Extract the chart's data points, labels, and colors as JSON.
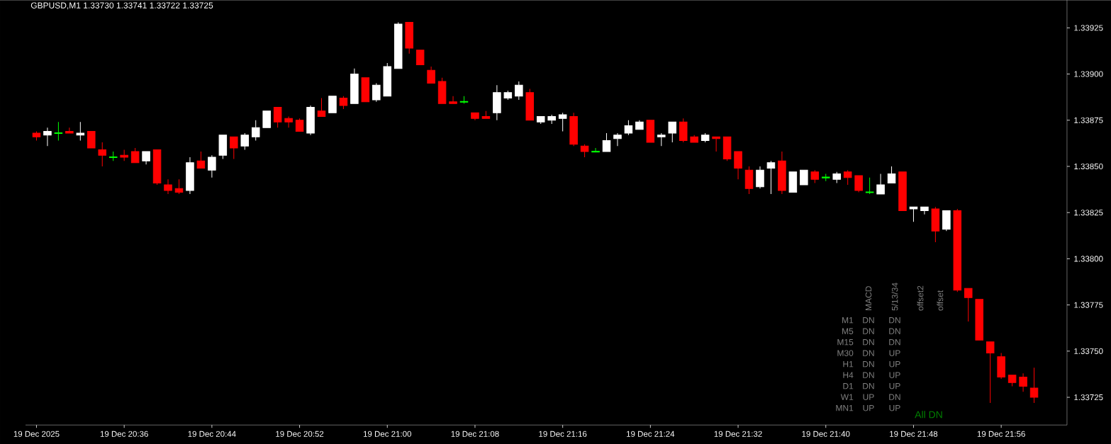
{
  "chart_data": {
    "type": "candlestick",
    "title": "GBPUSD,M1 1.33730 1.33741 1.33722 1.33725",
    "x": [
      "2025-12-19T20:28",
      "2025-12-19T20:29",
      "2025-12-19T20:30",
      "2025-12-19T20:31",
      "2025-12-19T20:32",
      "2025-12-19T20:33",
      "2025-12-19T20:34",
      "2025-12-19T20:35",
      "2025-12-19T20:36",
      "2025-12-19T20:37",
      "2025-12-19T20:38",
      "2025-12-19T20:39",
      "2025-12-19T20:40",
      "2025-12-19T20:41",
      "2025-12-19T20:42",
      "2025-12-19T20:43",
      "2025-12-19T20:44",
      "2025-12-19T20:45",
      "2025-12-19T20:46",
      "2025-12-19T20:47",
      "2025-12-19T20:48",
      "2025-12-19T20:49",
      "2025-12-19T20:50",
      "2025-12-19T20:51",
      "2025-12-19T20:52",
      "2025-12-19T20:53",
      "2025-12-19T20:54",
      "2025-12-19T20:55",
      "2025-12-19T20:56",
      "2025-12-19T20:57",
      "2025-12-19T20:58",
      "2025-12-19T20:59",
      "2025-12-19T21:00",
      "2025-12-19T21:01",
      "2025-12-19T21:02",
      "2025-12-19T21:03",
      "2025-12-19T21:04",
      "2025-12-19T21:05",
      "2025-12-19T21:06",
      "2025-12-19T21:07",
      "2025-12-19T21:08",
      "2025-12-19T21:09",
      "2025-12-19T21:10",
      "2025-12-19T21:11",
      "2025-12-19T21:12",
      "2025-12-19T21:13",
      "2025-12-19T21:14",
      "2025-12-19T21:15",
      "2025-12-19T21:16",
      "2025-12-19T21:17",
      "2025-12-19T21:18",
      "2025-12-19T21:19",
      "2025-12-19T21:20",
      "2025-12-19T21:21",
      "2025-12-19T21:22",
      "2025-12-19T21:23",
      "2025-12-19T21:24",
      "2025-12-19T21:25",
      "2025-12-19T21:26",
      "2025-12-19T21:27",
      "2025-12-19T21:28",
      "2025-12-19T21:29",
      "2025-12-19T21:30",
      "2025-12-19T21:31",
      "2025-12-19T21:32",
      "2025-12-19T21:33",
      "2025-12-19T21:34",
      "2025-12-19T21:35",
      "2025-12-19T21:36",
      "2025-12-19T21:37",
      "2025-12-19T21:38",
      "2025-12-19T21:39",
      "2025-12-19T21:40",
      "2025-12-19T21:41",
      "2025-12-19T21:42",
      "2025-12-19T21:43",
      "2025-12-19T21:44",
      "2025-12-19T21:45",
      "2025-12-19T21:46",
      "2025-12-19T21:47",
      "2025-12-19T21:48",
      "2025-12-19T21:49",
      "2025-12-19T21:50",
      "2025-12-19T21:51",
      "2025-12-19T21:52",
      "2025-12-19T21:53",
      "2025-12-19T21:54",
      "2025-12-19T21:55",
      "2025-12-19T21:56",
      "2025-12-19T21:57",
      "2025-12-19T21:58",
      "2025-12-19T21:59"
    ],
    "ohlc": [
      [
        1.33868,
        1.33869,
        1.33864,
        1.33866
      ],
      [
        1.33867,
        1.33871,
        1.33861,
        1.33869
      ],
      [
        1.33868,
        1.33874,
        1.33864,
        1.33868
      ],
      [
        1.33869,
        1.33871,
        1.33868,
        1.33868
      ],
      [
        1.33867,
        1.33874,
        1.33864,
        1.33868
      ],
      [
        1.33869,
        1.33869,
        1.3386,
        1.3386
      ],
      [
        1.33859,
        1.33863,
        1.3385,
        1.33856
      ],
      [
        1.33855,
        1.33858,
        1.33853,
        1.33855
      ],
      [
        1.33856,
        1.33859,
        1.33853,
        1.33855
      ],
      [
        1.33858,
        1.3386,
        1.33852,
        1.33852
      ],
      [
        1.33853,
        1.33858,
        1.33851,
        1.33858
      ],
      [
        1.33859,
        1.33859,
        1.3384,
        1.33841
      ],
      [
        1.3384,
        1.33843,
        1.33835,
        1.33837
      ],
      [
        1.33838,
        1.33843,
        1.33835,
        1.33836
      ],
      [
        1.33837,
        1.33855,
        1.33835,
        1.33852
      ],
      [
        1.33853,
        1.33858,
        1.33849,
        1.33849
      ],
      [
        1.33848,
        1.33856,
        1.33844,
        1.33855
      ],
      [
        1.33856,
        1.33867,
        1.33854,
        1.33867
      ],
      [
        1.33866,
        1.33866,
        1.33854,
        1.3386
      ],
      [
        1.33861,
        1.33868,
        1.33859,
        1.33867
      ],
      [
        1.33866,
        1.33875,
        1.33864,
        1.33871
      ],
      [
        1.33871,
        1.3388,
        1.33871,
        1.3388
      ],
      [
        1.33882,
        1.33882,
        1.33871,
        1.33874
      ],
      [
        1.33876,
        1.33877,
        1.33871,
        1.33874
      ],
      [
        1.33875,
        1.33876,
        1.33869,
        1.33869
      ],
      [
        1.33868,
        1.33883,
        1.33867,
        1.33882
      ],
      [
        1.3388,
        1.33887,
        1.33877,
        1.33877
      ],
      [
        1.33879,
        1.33888,
        1.33879,
        1.33888
      ],
      [
        1.33887,
        1.33888,
        1.33881,
        1.33883
      ],
      [
        1.33884,
        1.33903,
        1.33884,
        1.339
      ],
      [
        1.33898,
        1.33898,
        1.33885,
        1.33885
      ],
      [
        1.33886,
        1.33895,
        1.33885,
        1.33894
      ],
      [
        1.33888,
        1.33906,
        1.33888,
        1.33904
      ],
      [
        1.33903,
        1.33928,
        1.33903,
        1.33927
      ],
      [
        1.33928,
        1.33928,
        1.33911,
        1.33914
      ],
      [
        1.33913,
        1.33913,
        1.33905,
        1.33905
      ],
      [
        1.33902,
        1.33904,
        1.33895,
        1.33895
      ],
      [
        1.33896,
        1.33898,
        1.33884,
        1.33884
      ],
      [
        1.33885,
        1.33888,
        1.33884,
        1.33884
      ],
      [
        1.33885,
        1.33888,
        1.33884,
        1.33885
      ],
      [
        1.33879,
        1.33879,
        1.33875,
        1.33876
      ],
      [
        1.33877,
        1.3388,
        1.33876,
        1.33876
      ],
      [
        1.33879,
        1.33894,
        1.33875,
        1.3389
      ],
      [
        1.33887,
        1.33891,
        1.33886,
        1.3389
      ],
      [
        1.33888,
        1.33896,
        1.33886,
        1.33894
      ],
      [
        1.3389,
        1.33892,
        1.33875,
        1.33875
      ],
      [
        1.33874,
        1.33877,
        1.33873,
        1.33877
      ],
      [
        1.33875,
        1.33878,
        1.33873,
        1.33877
      ],
      [
        1.33876,
        1.33879,
        1.33869,
        1.33878
      ],
      [
        1.33877,
        1.33879,
        1.33861,
        1.33862
      ],
      [
        1.33861,
        1.33862,
        1.33855,
        1.33858
      ],
      [
        1.33858,
        1.3386,
        1.33858,
        1.33858
      ],
      [
        1.33858,
        1.33868,
        1.33858,
        1.33864
      ],
      [
        1.33865,
        1.33868,
        1.33861,
        1.33867
      ],
      [
        1.33868,
        1.33875,
        1.33867,
        1.33872
      ],
      [
        1.3387,
        1.33875,
        1.3387,
        1.33874
      ],
      [
        1.33875,
        1.33875,
        1.33863,
        1.33863
      ],
      [
        1.33866,
        1.33868,
        1.33861,
        1.33867
      ],
      [
        1.33868,
        1.33874,
        1.33863,
        1.33874
      ],
      [
        1.33874,
        1.33876,
        1.33863,
        1.33864
      ],
      [
        1.33866,
        1.33867,
        1.33863,
        1.33863
      ],
      [
        1.33864,
        1.33868,
        1.33863,
        1.33867
      ],
      [
        1.33866,
        1.33866,
        1.33858,
        1.33865
      ],
      [
        1.33866,
        1.33866,
        1.33853,
        1.33854
      ],
      [
        1.33858,
        1.33858,
        1.33843,
        1.33849
      ],
      [
        1.33848,
        1.3385,
        1.33835,
        1.33838
      ],
      [
        1.33839,
        1.3385,
        1.33838,
        1.33848
      ],
      [
        1.33849,
        1.33853,
        1.33835,
        1.33852
      ],
      [
        1.33853,
        1.33858,
        1.33835,
        1.33837
      ],
      [
        1.33836,
        1.33847,
        1.33836,
        1.33847
      ],
      [
        1.3384,
        1.33848,
        1.3384,
        1.33848
      ],
      [
        1.33847,
        1.33848,
        1.33841,
        1.33843
      ],
      [
        1.33844,
        1.33846,
        1.33842,
        1.33844
      ],
      [
        1.33843,
        1.33847,
        1.33841,
        1.33846
      ],
      [
        1.33847,
        1.33848,
        1.3384,
        1.33844
      ],
      [
        1.33845,
        1.33845,
        1.33836,
        1.33837
      ],
      [
        1.33836,
        1.33844,
        1.33835,
        1.33836
      ],
      [
        1.33835,
        1.33846,
        1.33835,
        1.3384
      ],
      [
        1.33841,
        1.3385,
        1.33841,
        1.33846
      ],
      [
        1.33847,
        1.33847,
        1.33826,
        1.33826
      ],
      [
        1.33827,
        1.33828,
        1.3382,
        1.33828
      ],
      [
        1.33826,
        1.33828,
        1.33824,
        1.33828
      ],
      [
        1.33827,
        1.33828,
        1.33809,
        1.33815
      ],
      [
        1.33816,
        1.33826,
        1.33815,
        1.33826
      ],
      [
        1.33826,
        1.33827,
        1.33782,
        1.33783
      ],
      [
        1.33784,
        1.33784,
        1.33766,
        1.33779
      ],
      [
        1.33778,
        1.33778,
        1.33756,
        1.33756
      ],
      [
        1.33755,
        1.33755,
        1.33722,
        1.33749
      ],
      [
        1.33747,
        1.33749,
        1.33735,
        1.33736
      ],
      [
        1.33737,
        1.33737,
        1.33731,
        1.33733
      ],
      [
        1.33736,
        1.33738,
        1.33728,
        1.33731
      ],
      [
        1.3373,
        1.33741,
        1.33722,
        1.33725
      ]
    ],
    "colors": [
      "#ff0000",
      "#ffffff",
      "#00ff00",
      "#ff0000",
      "#ffffff",
      "#ff0000",
      "#ff0000",
      "#00ff00",
      "#ff0000",
      "#ff0000",
      "#ffffff",
      "#ff0000",
      "#ff0000",
      "#ff0000",
      "#ffffff",
      "#ff0000",
      "#ffffff",
      "#ffffff",
      "#ff0000",
      "#ffffff",
      "#ffffff",
      "#ffffff",
      "#ff0000",
      "#ff0000",
      "#ff0000",
      "#ffffff",
      "#ff0000",
      "#ffffff",
      "#ff0000",
      "#ffffff",
      "#ff0000",
      "#ffffff",
      "#ffffff",
      "#ffffff",
      "#ff0000",
      "#ff0000",
      "#ff0000",
      "#ff0000",
      "#ff0000",
      "#00ff00",
      "#ff0000",
      "#ff0000",
      "#ffffff",
      "#ffffff",
      "#ffffff",
      "#ff0000",
      "#ffffff",
      "#ffffff",
      "#ffffff",
      "#ff0000",
      "#ff0000",
      "#00ff00",
      "#ffffff",
      "#ffffff",
      "#ffffff",
      "#ffffff",
      "#ff0000",
      "#ffffff",
      "#ffffff",
      "#ff0000",
      "#ff0000",
      "#ffffff",
      "#ff0000",
      "#ff0000",
      "#ff0000",
      "#ff0000",
      "#ffffff",
      "#ffffff",
      "#ff0000",
      "#ffffff",
      "#ffffff",
      "#ff0000",
      "#00ff00",
      "#ffffff",
      "#ff0000",
      "#ff0000",
      "#00ff00",
      "#ffffff",
      "#ffffff",
      "#ff0000",
      "#ffffff",
      "#ffffff",
      "#ff0000",
      "#ffffff",
      "#ff0000",
      "#ff0000",
      "#ff0000",
      "#ff0000",
      "#ff0000",
      "#ff0000",
      "#ff0000",
      "#ff0000"
    ],
    "xlim": [
      "2025-12-19T20:27",
      "2025-12-19T22:02"
    ],
    "xticks": [
      {
        "value": "2025-12-19T20:28",
        "label": "19 Dec 2025"
      },
      {
        "value": "2025-12-19T20:36",
        "label": "19 Dec 20:36"
      },
      {
        "value": "2025-12-19T20:44",
        "label": "19 Dec 20:44"
      },
      {
        "value": "2025-12-19T20:52",
        "label": "19 Dec 20:52"
      },
      {
        "value": "2025-12-19T21:00",
        "label": "19 Dec 21:00"
      },
      {
        "value": "2025-12-19T21:08",
        "label": "19 Dec 21:08"
      },
      {
        "value": "2025-12-19T21:16",
        "label": "19 Dec 21:16"
      },
      {
        "value": "2025-12-19T21:24",
        "label": "19 Dec 21:24"
      },
      {
        "value": "2025-12-19T21:32",
        "label": "19 Dec 21:32"
      },
      {
        "value": "2025-12-19T21:40",
        "label": "19 Dec 21:40"
      },
      {
        "value": "2025-12-19T21:48",
        "label": "19 Dec 21:48"
      },
      {
        "value": "2025-12-19T21:56",
        "label": "19 Dec 21:56"
      }
    ],
    "ylim": [
      1.3371,
      1.3394
    ],
    "yticks": [
      1.33725,
      {
        "value": 1.3375,
        "label": "1.33750"
      },
      1.33775,
      {
        "value": 1.338,
        "label": "1.33800"
      },
      1.33825,
      {
        "value": 1.3385,
        "label": "1.33850"
      },
      1.33875,
      {
        "value": 1.339,
        "label": "1.33900"
      },
      1.33925
    ],
    "annotations": [
      "MACD",
      "5/13/34",
      "offset2",
      "offset",
      "M1",
      "DN",
      "DN",
      "M5",
      "DN",
      "DN",
      "M15",
      "DN",
      "DN",
      "M30",
      "DN",
      "UP",
      "H1",
      "DN",
      "UP",
      "H4",
      "DN",
      "UP",
      "D1",
      "DN",
      "UP",
      "W1",
      "UP",
      "DN",
      "MN1",
      "UP",
      "UP",
      "All DN"
    ]
  }
}
